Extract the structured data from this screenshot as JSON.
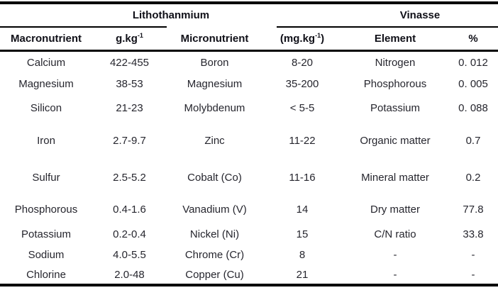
{
  "table": {
    "groups": [
      {
        "label": "Lithothanmium"
      },
      {
        "label": "Vinasse"
      }
    ],
    "columns": [
      {
        "label": "Macronutrient"
      },
      {
        "label_prefix": "g.kg",
        "label_sup": "-1"
      },
      {
        "label": "Micronutrient"
      },
      {
        "label_prefix": "(mg.kg",
        "label_sup": "-1",
        "label_suffix": ")"
      },
      {
        "label": "Element"
      },
      {
        "label": "%"
      }
    ],
    "rows": [
      [
        "Calcium",
        "422-455",
        "Boron",
        "8-20",
        "Nitrogen",
        "0. 012"
      ],
      [
        "Magnesium",
        "38-53",
        "Magnesium",
        "35-200",
        "Phosphorous",
        "0. 005"
      ],
      [
        "Silicon",
        "21-23",
        "Molybdenum",
        "< 5-5",
        "Potassium",
        "0. 088"
      ],
      [
        "Iron",
        "2.7-9.7",
        "Zinc",
        "11-22",
        "Organic matter",
        "0.7"
      ],
      [
        "Sulfur",
        "2.5-5.2",
        "Cobalt (Co)",
        "11-16",
        "Mineral matter",
        "0.2"
      ],
      [
        "Phosphorous",
        "0.4-1.6",
        "Vanadium (V)",
        "14",
        "Dry matter",
        "77.8"
      ],
      [
        "Potassium",
        "0.2-0.4",
        "Nickel (Ni)",
        "15",
        "C/N ratio",
        "33.8"
      ],
      [
        "Sodium",
        "4.0-5.5",
        "Chrome (Cr)",
        "8",
        "-",
        "-"
      ],
      [
        "Chlorine",
        "2.0-48",
        "Copper (Cu)",
        "21",
        "-",
        "-"
      ]
    ],
    "colors": {
      "background": "#ffffff",
      "rule": "#000000",
      "header_text": "#101018",
      "body_text": "#26262e"
    }
  }
}
